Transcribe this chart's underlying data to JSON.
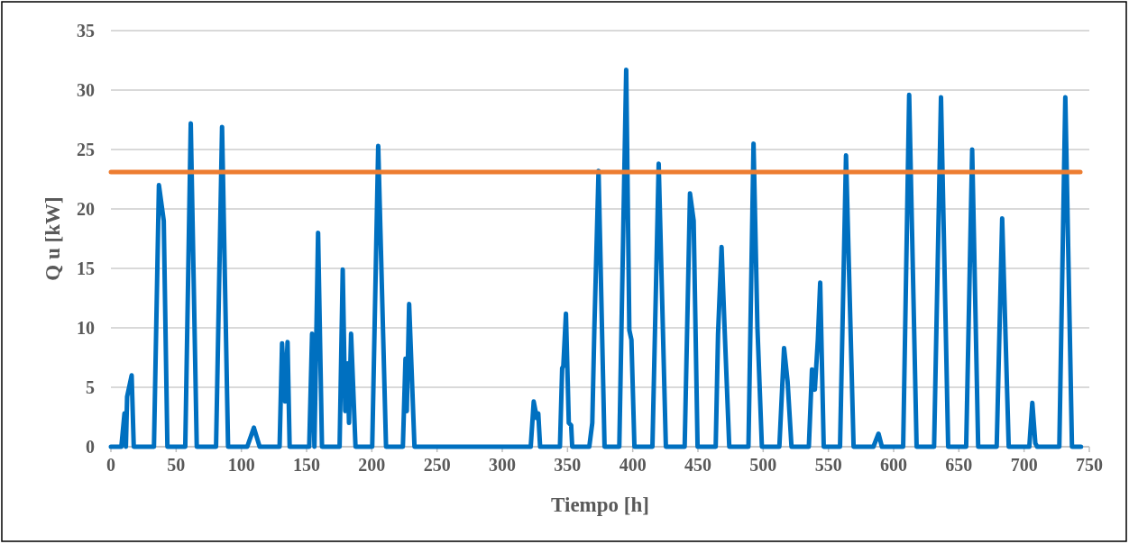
{
  "chart_data": {
    "type": "line",
    "xlabel": "Tiempo [h]",
    "ylabel": "Q u [kW]",
    "xlim": [
      0,
      750
    ],
    "xticks": [
      0,
      50,
      100,
      150,
      200,
      250,
      300,
      350,
      400,
      450,
      500,
      550,
      600,
      650,
      700,
      750
    ],
    "ylim": [
      0,
      35
    ],
    "yticks": [
      0,
      5,
      10,
      15,
      20,
      25,
      30,
      35
    ],
    "grid": "y",
    "marker": "none",
    "line_style": "solid",
    "ref_lines": [
      {
        "axis": "y",
        "value": 23.1,
        "color": "#ed7d31"
      }
    ],
    "series": [
      {
        "color": "#0070c0",
        "x": [
          0,
          8,
          10.4,
          11.5,
          12.4,
          15.9,
          17.5,
          33,
          36.8,
          40.5,
          43.3,
          57,
          61.2,
          65.8,
          80.6,
          85.2,
          89.8,
          104.5,
          109.6,
          114,
          129.3,
          131.2,
          133.5,
          135.4,
          137,
          152,
          154.2,
          156,
          158.8,
          161.8,
          175.3,
          177.7,
          179.6,
          181.4,
          182.5,
          184.1,
          187.5,
          200.3,
          204.9,
          210.9,
          223.8,
          225.8,
          226.8,
          228.6,
          232.7,
          321.8,
          324.1,
          326.5,
          327.6,
          329,
          344.2,
          345.9,
          346.8,
          348.8,
          351,
          352.8,
          353.6,
          366.7,
          369,
          370.6,
          373.8,
          378.4,
          389.7,
          395,
          397.4,
          399,
          401.3,
          415.1,
          419.9,
          425.4,
          439.8,
          443.9,
          446.7,
          449.7,
          463.6,
          465.4,
          468.1,
          470.4,
          474,
          488.7,
          492.6,
          495.6,
          499,
          512.4,
          516,
          518.7,
          521.7,
          535,
          537.4,
          539.6,
          541.9,
          543.7,
          546.4,
          558.9,
          563.5,
          569.3,
          584.5,
          588.4,
          591,
          607.3,
          611.9,
          617.6,
          631,
          636.3,
          641.8,
          655.6,
          660.2,
          664.8,
          679,
          683.2,
          688.2,
          704,
          706.3,
          708.6,
          710,
          727,
          731.6,
          736.7,
          743.6
        ],
        "values": [
          0,
          0,
          2.8,
          0,
          4.2,
          6,
          0,
          0,
          22,
          19,
          0,
          0,
          27.2,
          0,
          0,
          26.9,
          0,
          0,
          1.6,
          0,
          0,
          8.7,
          3.8,
          8.8,
          0,
          0,
          9.5,
          0,
          18,
          0,
          0,
          14.9,
          3,
          7,
          2,
          9.5,
          0,
          0,
          25.3,
          0,
          0,
          7.4,
          3,
          12,
          0,
          0,
          3.8,
          2.4,
          2.8,
          0,
          0,
          6.6,
          6.8,
          11.2,
          2,
          1.8,
          0,
          0,
          2,
          10,
          23.2,
          0,
          0,
          31.7,
          9.8,
          9,
          0,
          0,
          23.8,
          0,
          0,
          21.3,
          19,
          0,
          0,
          9.5,
          16.8,
          10,
          0,
          0,
          25.5,
          10,
          0,
          0,
          8.3,
          5.5,
          0,
          0,
          6.5,
          4.8,
          9,
          13.8,
          0,
          0,
          24.5,
          0,
          0,
          1.1,
          0,
          0,
          29.6,
          0,
          0,
          29.4,
          0,
          0,
          25,
          0,
          0,
          19.2,
          0,
          0,
          3.7,
          0.3,
          0,
          0,
          29.4,
          0,
          0
        ]
      }
    ]
  }
}
